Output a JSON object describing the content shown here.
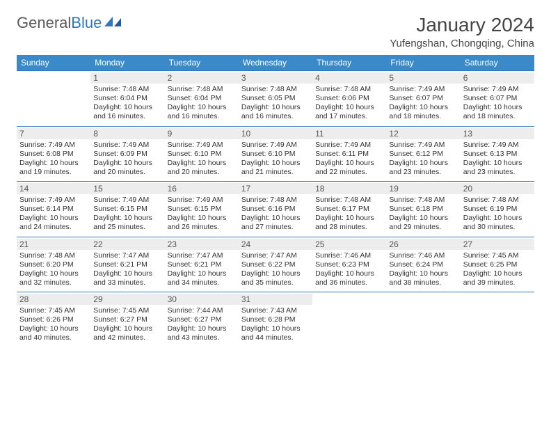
{
  "brand": {
    "part1": "General",
    "part2": "Blue"
  },
  "title": "January 2024",
  "location": "Yufengshan, Chongqing, China",
  "colors": {
    "header_bg": "#3a8ac9",
    "rule": "#2f78bf",
    "daynum_bg": "#ededed",
    "text": "#333333",
    "background": "#ffffff"
  },
  "typography": {
    "title_fontsize": 28,
    "location_fontsize": 15,
    "weekday_fontsize": 12,
    "daynum_fontsize": 12,
    "detail_fontsize": 10.5
  },
  "weekdays": [
    "Sunday",
    "Monday",
    "Tuesday",
    "Wednesday",
    "Thursday",
    "Friday",
    "Saturday"
  ],
  "weeks": [
    [
      {
        "n": "",
        "sr": "",
        "ss": "",
        "dl": ""
      },
      {
        "n": "1",
        "sr": "Sunrise: 7:48 AM",
        "ss": "Sunset: 6:04 PM",
        "dl": "Daylight: 10 hours and 16 minutes."
      },
      {
        "n": "2",
        "sr": "Sunrise: 7:48 AM",
        "ss": "Sunset: 6:04 PM",
        "dl": "Daylight: 10 hours and 16 minutes."
      },
      {
        "n": "3",
        "sr": "Sunrise: 7:48 AM",
        "ss": "Sunset: 6:05 PM",
        "dl": "Daylight: 10 hours and 16 minutes."
      },
      {
        "n": "4",
        "sr": "Sunrise: 7:48 AM",
        "ss": "Sunset: 6:06 PM",
        "dl": "Daylight: 10 hours and 17 minutes."
      },
      {
        "n": "5",
        "sr": "Sunrise: 7:49 AM",
        "ss": "Sunset: 6:07 PM",
        "dl": "Daylight: 10 hours and 18 minutes."
      },
      {
        "n": "6",
        "sr": "Sunrise: 7:49 AM",
        "ss": "Sunset: 6:07 PM",
        "dl": "Daylight: 10 hours and 18 minutes."
      }
    ],
    [
      {
        "n": "7",
        "sr": "Sunrise: 7:49 AM",
        "ss": "Sunset: 6:08 PM",
        "dl": "Daylight: 10 hours and 19 minutes."
      },
      {
        "n": "8",
        "sr": "Sunrise: 7:49 AM",
        "ss": "Sunset: 6:09 PM",
        "dl": "Daylight: 10 hours and 20 minutes."
      },
      {
        "n": "9",
        "sr": "Sunrise: 7:49 AM",
        "ss": "Sunset: 6:10 PM",
        "dl": "Daylight: 10 hours and 20 minutes."
      },
      {
        "n": "10",
        "sr": "Sunrise: 7:49 AM",
        "ss": "Sunset: 6:10 PM",
        "dl": "Daylight: 10 hours and 21 minutes."
      },
      {
        "n": "11",
        "sr": "Sunrise: 7:49 AM",
        "ss": "Sunset: 6:11 PM",
        "dl": "Daylight: 10 hours and 22 minutes."
      },
      {
        "n": "12",
        "sr": "Sunrise: 7:49 AM",
        "ss": "Sunset: 6:12 PM",
        "dl": "Daylight: 10 hours and 23 minutes."
      },
      {
        "n": "13",
        "sr": "Sunrise: 7:49 AM",
        "ss": "Sunset: 6:13 PM",
        "dl": "Daylight: 10 hours and 23 minutes."
      }
    ],
    [
      {
        "n": "14",
        "sr": "Sunrise: 7:49 AM",
        "ss": "Sunset: 6:14 PM",
        "dl": "Daylight: 10 hours and 24 minutes."
      },
      {
        "n": "15",
        "sr": "Sunrise: 7:49 AM",
        "ss": "Sunset: 6:15 PM",
        "dl": "Daylight: 10 hours and 25 minutes."
      },
      {
        "n": "16",
        "sr": "Sunrise: 7:49 AM",
        "ss": "Sunset: 6:15 PM",
        "dl": "Daylight: 10 hours and 26 minutes."
      },
      {
        "n": "17",
        "sr": "Sunrise: 7:48 AM",
        "ss": "Sunset: 6:16 PM",
        "dl": "Daylight: 10 hours and 27 minutes."
      },
      {
        "n": "18",
        "sr": "Sunrise: 7:48 AM",
        "ss": "Sunset: 6:17 PM",
        "dl": "Daylight: 10 hours and 28 minutes."
      },
      {
        "n": "19",
        "sr": "Sunrise: 7:48 AM",
        "ss": "Sunset: 6:18 PM",
        "dl": "Daylight: 10 hours and 29 minutes."
      },
      {
        "n": "20",
        "sr": "Sunrise: 7:48 AM",
        "ss": "Sunset: 6:19 PM",
        "dl": "Daylight: 10 hours and 30 minutes."
      }
    ],
    [
      {
        "n": "21",
        "sr": "Sunrise: 7:48 AM",
        "ss": "Sunset: 6:20 PM",
        "dl": "Daylight: 10 hours and 32 minutes."
      },
      {
        "n": "22",
        "sr": "Sunrise: 7:47 AM",
        "ss": "Sunset: 6:21 PM",
        "dl": "Daylight: 10 hours and 33 minutes."
      },
      {
        "n": "23",
        "sr": "Sunrise: 7:47 AM",
        "ss": "Sunset: 6:21 PM",
        "dl": "Daylight: 10 hours and 34 minutes."
      },
      {
        "n": "24",
        "sr": "Sunrise: 7:47 AM",
        "ss": "Sunset: 6:22 PM",
        "dl": "Daylight: 10 hours and 35 minutes."
      },
      {
        "n": "25",
        "sr": "Sunrise: 7:46 AM",
        "ss": "Sunset: 6:23 PM",
        "dl": "Daylight: 10 hours and 36 minutes."
      },
      {
        "n": "26",
        "sr": "Sunrise: 7:46 AM",
        "ss": "Sunset: 6:24 PM",
        "dl": "Daylight: 10 hours and 38 minutes."
      },
      {
        "n": "27",
        "sr": "Sunrise: 7:45 AM",
        "ss": "Sunset: 6:25 PM",
        "dl": "Daylight: 10 hours and 39 minutes."
      }
    ],
    [
      {
        "n": "28",
        "sr": "Sunrise: 7:45 AM",
        "ss": "Sunset: 6:26 PM",
        "dl": "Daylight: 10 hours and 40 minutes."
      },
      {
        "n": "29",
        "sr": "Sunrise: 7:45 AM",
        "ss": "Sunset: 6:27 PM",
        "dl": "Daylight: 10 hours and 42 minutes."
      },
      {
        "n": "30",
        "sr": "Sunrise: 7:44 AM",
        "ss": "Sunset: 6:27 PM",
        "dl": "Daylight: 10 hours and 43 minutes."
      },
      {
        "n": "31",
        "sr": "Sunrise: 7:43 AM",
        "ss": "Sunset: 6:28 PM",
        "dl": "Daylight: 10 hours and 44 minutes."
      },
      {
        "n": "",
        "sr": "",
        "ss": "",
        "dl": ""
      },
      {
        "n": "",
        "sr": "",
        "ss": "",
        "dl": ""
      },
      {
        "n": "",
        "sr": "",
        "ss": "",
        "dl": ""
      }
    ]
  ]
}
